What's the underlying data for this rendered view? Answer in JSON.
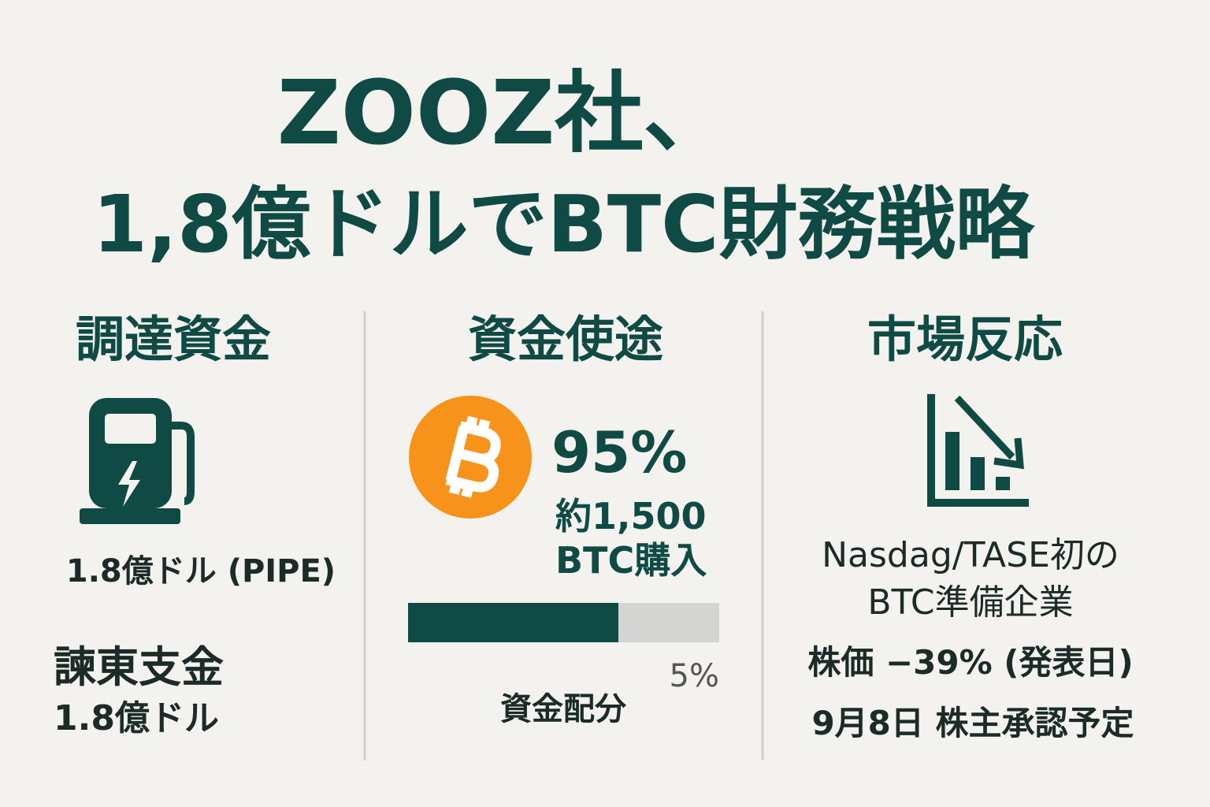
{
  "header": {
    "title_line1": "ZOOZ社、",
    "title_line2": "1,8億ドルでBTC財務戦略"
  },
  "columns": [
    {
      "heading": "調達資金",
      "amount": "1.8億ドル (PIPE)",
      "sub_heading": "諫東支金",
      "sub_amount": "1.8億ドル"
    },
    {
      "heading": "資金使途",
      "percent": "95%",
      "detail_line1": "約1,500",
      "detail_line2": "BTC購入",
      "remainder": "5%",
      "bar_caption": "資金配分"
    },
    {
      "heading": "市場反応",
      "lines": [
        "Nasdag/TASE初の",
        "BTC準備企業",
        "株価 −39% (発表日)",
        "9月8日 株主承認予定"
      ]
    }
  ]
}
